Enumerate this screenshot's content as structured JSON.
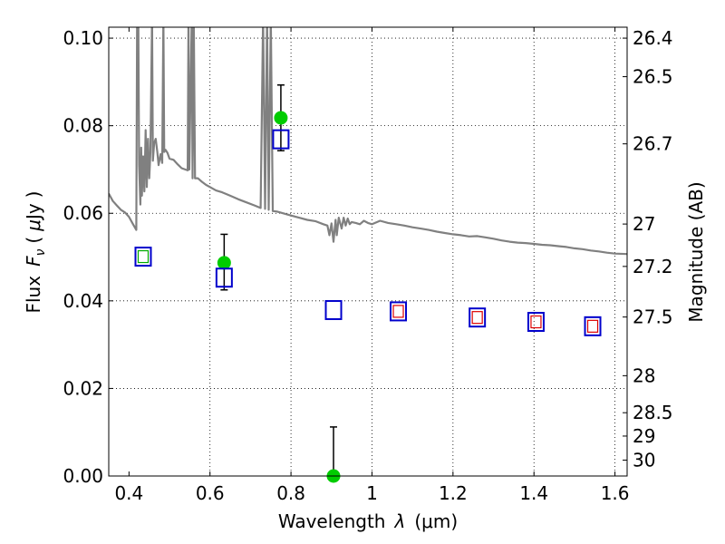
{
  "chart_data": {
    "type": "scatter",
    "xlabel_prefix": "Wavelength",
    "xlabel_symbol": "λ",
    "xlabel_unit": "(μm)",
    "ylabel_prefix": "Flux",
    "ylabel_symbol_main": "F",
    "ylabel_symbol_sub": "ν",
    "ylabel_unit_open": "(",
    "ylabel_unit_mu": "μ",
    "ylabel_unit_rest": "Jy",
    "ylabel_unit_close": ")",
    "y2label": "Magnitude (AB)",
    "xlim": [
      0.35,
      1.63
    ],
    "ylim": [
      0.0,
      0.1025
    ],
    "grid": true,
    "x_ticks": [
      0.4,
      0.6,
      0.8,
      1.0,
      1.2,
      1.4,
      1.6
    ],
    "x_tick_labels": [
      "0.4",
      "0.6",
      "0.8",
      "1",
      "1.2",
      "1.4",
      "1.6"
    ],
    "y_ticks": [
      0.0,
      0.02,
      0.04,
      0.06,
      0.08,
      0.1
    ],
    "y_tick_labels": [
      "0.00",
      "0.02",
      "0.04",
      "0.06",
      "0.08",
      "0.10"
    ],
    "y2_ticks": [
      {
        "label": "26.4",
        "mag": 26.4
      },
      {
        "label": "26.5",
        "mag": 26.5
      },
      {
        "label": "26.7",
        "mag": 26.7
      },
      {
        "label": "27",
        "mag": 27.0
      },
      {
        "label": "27.2",
        "mag": 27.2
      },
      {
        "label": "27.5",
        "mag": 27.5
      },
      {
        "label": "28",
        "mag": 28.0
      },
      {
        "label": "28.5",
        "mag": 28.5
      },
      {
        "label": "29",
        "mag": 29.0
      },
      {
        "label": "30",
        "mag": 30.0
      }
    ],
    "series": [
      {
        "kind": "model_spectrum",
        "color": "#808080",
        "points": [
          [
            0.35,
            0.0645
          ],
          [
            0.36,
            0.0628
          ],
          [
            0.37,
            0.0618
          ],
          [
            0.38,
            0.0608
          ],
          [
            0.39,
            0.0602
          ],
          [
            0.4,
            0.0592
          ],
          [
            0.41,
            0.0575
          ],
          [
            0.418,
            0.0562
          ],
          [
            0.42,
            0.105
          ],
          [
            0.423,
            0.105
          ],
          [
            0.425,
            0.071
          ],
          [
            0.428,
            0.062
          ],
          [
            0.43,
            0.075
          ],
          [
            0.432,
            0.064
          ],
          [
            0.435,
            0.073
          ],
          [
            0.438,
            0.065
          ],
          [
            0.441,
            0.079
          ],
          [
            0.444,
            0.066
          ],
          [
            0.447,
            0.077
          ],
          [
            0.45,
            0.068
          ],
          [
            0.453,
            0.074
          ],
          [
            0.457,
            0.105
          ],
          [
            0.459,
            0.072
          ],
          [
            0.462,
            0.076
          ],
          [
            0.466,
            0.077
          ],
          [
            0.47,
            0.074
          ],
          [
            0.473,
            0.071
          ],
          [
            0.478,
            0.0735
          ],
          [
            0.482,
            0.0715
          ],
          [
            0.485,
            0.105
          ],
          [
            0.487,
            0.074
          ],
          [
            0.49,
            0.0745
          ],
          [
            0.495,
            0.0738
          ],
          [
            0.5,
            0.0725
          ],
          [
            0.51,
            0.0722
          ],
          [
            0.52,
            0.0712
          ],
          [
            0.53,
            0.0703
          ],
          [
            0.545,
            0.0698
          ],
          [
            0.547,
            0.105
          ],
          [
            0.549,
            0.07
          ],
          [
            0.555,
            0.105
          ],
          [
            0.557,
            0.068
          ],
          [
            0.56,
            0.105
          ],
          [
            0.563,
            0.068
          ],
          [
            0.57,
            0.068
          ],
          [
            0.58,
            0.0672
          ],
          [
            0.59,
            0.0665
          ],
          [
            0.6,
            0.066
          ],
          [
            0.615,
            0.0652
          ],
          [
            0.63,
            0.0648
          ],
          [
            0.65,
            0.064
          ],
          [
            0.67,
            0.0632
          ],
          [
            0.69,
            0.0625
          ],
          [
            0.71,
            0.0618
          ],
          [
            0.725,
            0.0612
          ],
          [
            0.731,
            0.105
          ],
          [
            0.736,
            0.061
          ],
          [
            0.741,
            0.105
          ],
          [
            0.745,
            0.0608
          ],
          [
            0.75,
            0.105
          ],
          [
            0.755,
            0.0605
          ],
          [
            0.765,
            0.0604
          ],
          [
            0.78,
            0.06
          ],
          [
            0.8,
            0.0595
          ],
          [
            0.82,
            0.059
          ],
          [
            0.84,
            0.0585
          ],
          [
            0.86,
            0.0582
          ],
          [
            0.88,
            0.0575
          ],
          [
            0.89,
            0.0572
          ],
          [
            0.895,
            0.055
          ],
          [
            0.9,
            0.0577
          ],
          [
            0.905,
            0.0535
          ],
          [
            0.91,
            0.0585
          ],
          [
            0.913,
            0.055
          ],
          [
            0.918,
            0.059
          ],
          [
            0.925,
            0.0565
          ],
          [
            0.93,
            0.059
          ],
          [
            0.935,
            0.0572
          ],
          [
            0.94,
            0.0588
          ],
          [
            0.945,
            0.0575
          ],
          [
            0.95,
            0.058
          ],
          [
            0.96,
            0.0578
          ],
          [
            0.97,
            0.0575
          ],
          [
            0.98,
            0.0583
          ],
          [
            0.99,
            0.0578
          ],
          [
            1.0,
            0.0575
          ],
          [
            1.02,
            0.0583
          ],
          [
            1.04,
            0.0578
          ],
          [
            1.06,
            0.0575
          ],
          [
            1.08,
            0.0572
          ],
          [
            1.1,
            0.0568
          ],
          [
            1.12,
            0.0565
          ],
          [
            1.14,
            0.0562
          ],
          [
            1.16,
            0.0558
          ],
          [
            1.18,
            0.0555
          ],
          [
            1.2,
            0.0552
          ],
          [
            1.22,
            0.055
          ],
          [
            1.24,
            0.0547
          ],
          [
            1.26,
            0.0548
          ],
          [
            1.28,
            0.0545
          ],
          [
            1.3,
            0.0542
          ],
          [
            1.32,
            0.0538
          ],
          [
            1.34,
            0.0535
          ],
          [
            1.36,
            0.0533
          ],
          [
            1.38,
            0.0532
          ],
          [
            1.4,
            0.053
          ],
          [
            1.42,
            0.0528
          ],
          [
            1.44,
            0.0527
          ],
          [
            1.46,
            0.0525
          ],
          [
            1.48,
            0.0523
          ],
          [
            1.5,
            0.052
          ],
          [
            1.52,
            0.0518
          ],
          [
            1.54,
            0.0515
          ],
          [
            1.56,
            0.0513
          ],
          [
            1.58,
            0.051
          ],
          [
            1.6,
            0.0508
          ],
          [
            1.63,
            0.0507
          ]
        ]
      },
      {
        "kind": "observed",
        "marker": "filled-circle",
        "color": "#00cc00",
        "errorbar_color": "#000000",
        "points": [
          {
            "x": 0.635,
            "y": 0.0487,
            "ylo": 0.0425,
            "yhi": 0.0552
          },
          {
            "x": 0.775,
            "y": 0.0818,
            "ylo": 0.0743,
            "yhi": 0.0893
          },
          {
            "x": 0.905,
            "y": 0.0,
            "ylo": 0.0,
            "yhi": 0.0112
          }
        ]
      },
      {
        "kind": "model_band",
        "marker": "open-square",
        "color": "#0000cc",
        "points": [
          {
            "x": 0.435,
            "y": 0.0501
          },
          {
            "x": 0.635,
            "y": 0.0453
          },
          {
            "x": 0.775,
            "y": 0.0769
          },
          {
            "x": 0.905,
            "y": 0.0379
          },
          {
            "x": 1.065,
            "y": 0.0376
          },
          {
            "x": 1.26,
            "y": 0.0362
          },
          {
            "x": 1.405,
            "y": 0.0352
          },
          {
            "x": 1.545,
            "y": 0.0342
          }
        ]
      },
      {
        "kind": "model_band_inner",
        "marker": "small-open-square",
        "colors": [
          "#00aa00",
          "#dd0000",
          "#dd0000",
          "#dd0000",
          "#dd0000"
        ],
        "points": [
          {
            "x": 0.435,
            "y": 0.0501
          },
          {
            "x": 1.065,
            "y": 0.0376
          },
          {
            "x": 1.26,
            "y": 0.0362
          },
          {
            "x": 1.405,
            "y": 0.0352
          },
          {
            "x": 1.545,
            "y": 0.0342
          }
        ]
      }
    ]
  }
}
